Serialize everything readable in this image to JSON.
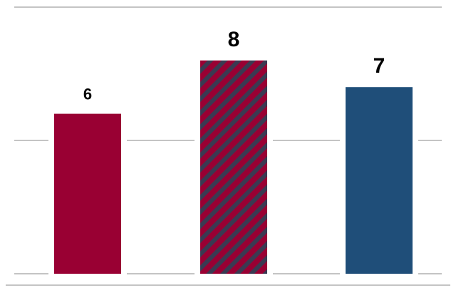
{
  "chart_data": {
    "type": "bar",
    "categories": [
      "",
      "",
      ""
    ],
    "values": [
      6,
      8,
      7
    ],
    "data_labels": [
      "6",
      "8",
      "7"
    ],
    "title": "",
    "xlabel": "",
    "ylabel": "",
    "ylim": [
      0,
      10
    ],
    "grid": true,
    "bar_styles": [
      {
        "color": "#990033",
        "pattern": "solid"
      },
      {
        "color": "#990033",
        "pattern": "diagonal-stripes",
        "stripe_color": "#3a3a52"
      },
      {
        "color": "#1f4e79",
        "pattern": "solid"
      }
    ],
    "gridline_color": "#888888"
  }
}
